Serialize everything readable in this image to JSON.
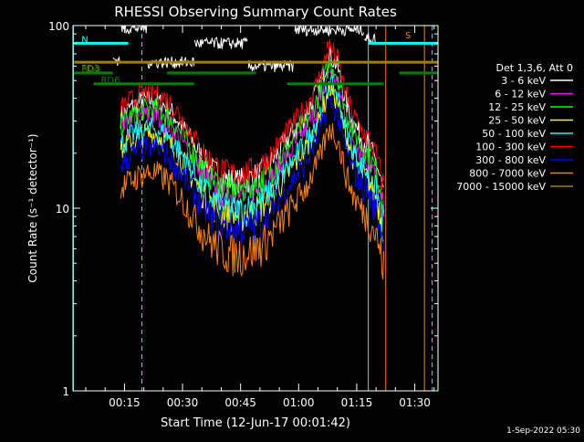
{
  "chart_data": {
    "type": "line",
    "title": "RHESSI Observing Summary Count Rates",
    "xlabel": "Start Time (12-Jun-17 00:01:42)",
    "ylabel": "Count Rate (s⁻¹ detector⁻¹)",
    "yscale": "log",
    "ylim": [
      1,
      100
    ],
    "xlim_minutes": [
      1.7,
      96
    ],
    "xticks": [
      {
        "min": 15,
        "label": "00:15"
      },
      {
        "min": 30,
        "label": "00:30"
      },
      {
        "min": 45,
        "label": "00:45"
      },
      {
        "min": 60,
        "label": "01:00"
      },
      {
        "min": 75,
        "label": "01:15"
      },
      {
        "min": 90,
        "label": "01:30"
      }
    ],
    "yticks": [
      {
        "value": 1,
        "label": "1"
      },
      {
        "value": 10,
        "label": "10"
      },
      {
        "value": 100,
        "label": "100"
      }
    ],
    "legend_title": "Det 1,3,6, Att 0",
    "legend_position": "right",
    "grid": false,
    "series": [
      {
        "name": "3 - 6 keV",
        "color": "#ffffff",
        "scale": 1.0
      },
      {
        "name": "6 - 12 keV",
        "color": "#ff00ff",
        "scale": 0.82
      },
      {
        "name": "12 - 25 keV",
        "color": "#00ff00",
        "scale": 0.9
      },
      {
        "name": "25 - 50 keV",
        "color": "#ffff00",
        "scale": 0.65
      },
      {
        "name": "50 - 100 keV",
        "color": "#00ffff",
        "scale": 0.7
      },
      {
        "name": "100 - 300 keV",
        "color": "#ff0000",
        "scale": 1.1
      },
      {
        "name": "300 - 800 keV",
        "color": "#0000ff",
        "scale": 0.55
      },
      {
        "name": "800 - 7000 keV",
        "color": "#ff8000",
        "scale": 0.4
      },
      {
        "name": "7000 - 15000 keV",
        "color": "#a08000",
        "scale": 0.0
      }
    ],
    "profile": {
      "x": [
        14,
        17,
        20,
        23,
        26,
        29,
        32,
        35,
        38,
        41,
        44,
        47,
        50,
        53,
        56,
        59,
        62,
        65,
        68,
        70,
        72,
        74,
        76,
        78,
        80,
        82
      ],
      "y": [
        32,
        36,
        39,
        39,
        36,
        30,
        24,
        19,
        16,
        14.5,
        14,
        14.5,
        15.5,
        18,
        22,
        27,
        33,
        45,
        70,
        60,
        40,
        30,
        25,
        22,
        18,
        12
      ]
    },
    "annotations": {
      "segments": [
        {
          "label": "N",
          "color": "#00ffff",
          "x0": 2,
          "x1": 16,
          "y": 80
        },
        {
          "label": "",
          "color": "#00ffff",
          "x0": 78,
          "x1": 96,
          "y": 80
        },
        {
          "label": "FD3",
          "color": "#a08000",
          "x0": 2,
          "x1": 96,
          "y": 63
        },
        {
          "label": "RD0",
          "color": "#008000",
          "x0": 2,
          "x1": 12,
          "y": 55
        },
        {
          "label": "",
          "color": "#008000",
          "x0": 26,
          "x1": 49,
          "y": 55
        },
        {
          "label": "",
          "color": "#008000",
          "x0": 86,
          "x1": 96,
          "y": 55
        },
        {
          "label": "RD6",
          "color": "#008000",
          "x0": 7,
          "x1": 33,
          "y": 48
        },
        {
          "label": "",
          "color": "#008000",
          "x0": 57,
          "x1": 82,
          "y": 48
        }
      ],
      "flags": [
        {
          "label": "S",
          "color": "#ff8000",
          "x": 87.5,
          "y": 85
        },
        {
          "label": "F",
          "color": "#ff0000",
          "x": 67,
          "y": 75
        }
      ],
      "vlines": [
        {
          "x": 1.8,
          "color": "#00ffff",
          "style": "solid"
        },
        {
          "x": 19.5,
          "color": "#00ffff",
          "style": "dashed"
        },
        {
          "x": 78,
          "color": "#00ffff",
          "style": "solid"
        },
        {
          "x": 82.5,
          "color": "#ff8000",
          "style": "solid"
        },
        {
          "x": 92.5,
          "color": "#ff8000",
          "style": "solid"
        },
        {
          "x": 94.5,
          "color": "#00ffff",
          "style": "dashed"
        }
      ]
    },
    "timestamp": "1-Sep-2022 05:30"
  }
}
